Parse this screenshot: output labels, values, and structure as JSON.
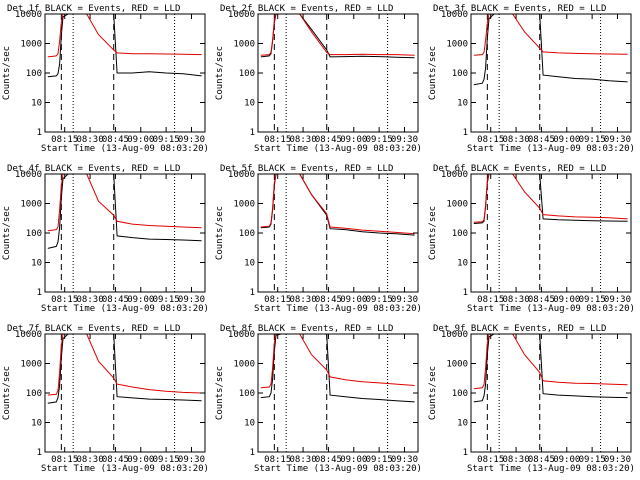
{
  "shared": {
    "ylabel": "Counts/sec",
    "xlabel": "Start Time (13-Aug-09 08:03:20)",
    "y_ticks": [
      "10000",
      "1000",
      "100",
      "10",
      "1"
    ],
    "x_ticks": [
      "08:15",
      "08:30",
      "08:45",
      "09:00",
      "09:15",
      "09:30"
    ]
  },
  "colors": {
    "events": "#000000",
    "lld": "#e00000",
    "axes": "#000000",
    "background": "#ffffff"
  },
  "chart_data": [
    {
      "type": "line",
      "title": "Det_1f BLACK = Events, RED = LLD",
      "xlim": [
        "08:03:20",
        "09:38"
      ],
      "ylim": [
        1,
        10000
      ],
      "yscale": "log",
      "x": [
        "08:05",
        "08:10",
        "08:11",
        "08:12",
        "08:13",
        "08:14",
        "08:17",
        "08:22",
        "08:28",
        "08:35",
        "08:44",
        "08:46",
        "08:55",
        "09:05",
        "09:15",
        "09:25",
        "09:36"
      ],
      "series": [
        {
          "name": "Events",
          "values": [
            75,
            80,
            95,
            200,
            1800,
            8000,
            10000,
            10000,
            10000,
            10000,
            10000,
            100,
            100,
            110,
            100,
            95,
            80
          ]
        },
        {
          "name": "LLD",
          "values": [
            350,
            380,
            450,
            1200,
            5000,
            10000,
            10000,
            10000,
            10000,
            2000,
            600,
            480,
            450,
            450,
            440,
            430,
            420
          ]
        }
      ],
      "markers": {
        "dashed": [
          "08:13",
          "08:44"
        ],
        "dotted": [
          "08:20",
          "09:20"
        ]
      }
    },
    {
      "type": "line",
      "title": "Det_2f BLACK = Events, RED = LLD",
      "xlim": [
        "08:03:20",
        "09:38"
      ],
      "ylim": [
        1,
        10000
      ],
      "yscale": "log",
      "x": [
        "08:05",
        "08:10",
        "08:11",
        "08:12",
        "08:13",
        "08:14",
        "08:17",
        "08:22",
        "08:28",
        "08:35",
        "08:44",
        "08:46",
        "08:55",
        "09:05",
        "09:15",
        "09:25",
        "09:36"
      ],
      "series": [
        {
          "name": "Events",
          "values": [
            350,
            380,
            450,
            1200,
            5000,
            10000,
            10000,
            10000,
            10000,
            3000,
            600,
            350,
            360,
            370,
            360,
            340,
            330
          ]
        },
        {
          "name": "LLD",
          "values": [
            400,
            420,
            500,
            1300,
            6000,
            10000,
            10000,
            10000,
            10000,
            2500,
            500,
            420,
            420,
            430,
            420,
            420,
            400
          ]
        }
      ],
      "markers": {
        "dashed": [
          "08:13",
          "08:44"
        ],
        "dotted": [
          "08:20",
          "09:20"
        ]
      }
    },
    {
      "type": "line",
      "title": "Det_3f BLACK = Events, RED = LLD",
      "xlim": [
        "08:03:20",
        "09:38"
      ],
      "ylim": [
        1,
        10000
      ],
      "yscale": "log",
      "x": [
        "08:05",
        "08:10",
        "08:11",
        "08:12",
        "08:13",
        "08:14",
        "08:17",
        "08:22",
        "08:28",
        "08:35",
        "08:44",
        "08:46",
        "08:55",
        "09:05",
        "09:15",
        "09:25",
        "09:36"
      ],
      "series": [
        {
          "name": "Events",
          "values": [
            40,
            45,
            60,
            150,
            1500,
            7000,
            10000,
            10000,
            10000,
            10000,
            10000,
            85,
            75,
            65,
            62,
            55,
            50
          ]
        },
        {
          "name": "LLD",
          "values": [
            400,
            420,
            500,
            1300,
            5000,
            10000,
            10000,
            10000,
            10000,
            2500,
            700,
            520,
            480,
            460,
            450,
            440,
            430
          ]
        }
      ],
      "markers": {
        "dashed": [
          "08:13",
          "08:44"
        ],
        "dotted": [
          "08:20",
          "09:20"
        ]
      }
    },
    {
      "type": "line",
      "title": "Det_4f BLACK = Events, RED = LLD",
      "xlim": [
        "08:03:20",
        "09:38"
      ],
      "ylim": [
        1,
        10000
      ],
      "yscale": "log",
      "x": [
        "08:05",
        "08:10",
        "08:11",
        "08:12",
        "08:13",
        "08:14",
        "08:17",
        "08:22",
        "08:28",
        "08:35",
        "08:44",
        "08:46",
        "08:55",
        "09:05",
        "09:15",
        "09:25",
        "09:36"
      ],
      "series": [
        {
          "name": "Events",
          "values": [
            30,
            35,
            50,
            150,
            1500,
            7000,
            10000,
            10000,
            10000,
            10000,
            10000,
            80,
            70,
            62,
            60,
            58,
            55
          ]
        },
        {
          "name": "LLD",
          "values": [
            120,
            130,
            160,
            600,
            4000,
            10000,
            10000,
            10000,
            10000,
            1200,
            400,
            250,
            200,
            180,
            170,
            160,
            150
          ]
        }
      ],
      "markers": {
        "dashed": [
          "08:13",
          "08:44"
        ],
        "dotted": [
          "08:20",
          "09:20"
        ]
      }
    },
    {
      "type": "line",
      "title": "Det_5f BLACK = Events, RED = LLD",
      "xlim": [
        "08:03:20",
        "09:38"
      ],
      "ylim": [
        1,
        10000
      ],
      "yscale": "log",
      "x": [
        "08:05",
        "08:10",
        "08:11",
        "08:12",
        "08:13",
        "08:14",
        "08:17",
        "08:22",
        "08:28",
        "08:35",
        "08:44",
        "08:46",
        "08:55",
        "09:05",
        "09:15",
        "09:25",
        "09:36"
      ],
      "series": [
        {
          "name": "Events",
          "values": [
            150,
            160,
            200,
            600,
            4000,
            10000,
            10000,
            10000,
            10000,
            2000,
            400,
            140,
            130,
            110,
            100,
            95,
            85
          ]
        },
        {
          "name": "LLD",
          "values": [
            160,
            170,
            220,
            700,
            5000,
            10000,
            10000,
            10000,
            10000,
            2000,
            450,
            160,
            145,
            125,
            115,
            105,
            95
          ]
        }
      ],
      "markers": {
        "dashed": [
          "08:13",
          "08:44"
        ],
        "dotted": [
          "08:20",
          "09:20"
        ]
      }
    },
    {
      "type": "line",
      "title": "Det_6f BLACK = Events, RED = LLD",
      "xlim": [
        "08:03:20",
        "09:38"
      ],
      "ylim": [
        1,
        10000
      ],
      "yscale": "log",
      "x": [
        "08:05",
        "08:10",
        "08:11",
        "08:12",
        "08:13",
        "08:14",
        "08:17",
        "08:22",
        "08:28",
        "08:35",
        "08:44",
        "08:46",
        "08:55",
        "09:05",
        "09:15",
        "09:25",
        "09:36"
      ],
      "series": [
        {
          "name": "Events",
          "values": [
            210,
            220,
            250,
            800,
            5000,
            10000,
            10000,
            10000,
            10000,
            10000,
            10000,
            300,
            280,
            270,
            260,
            255,
            250
          ]
        },
        {
          "name": "LLD",
          "values": [
            230,
            240,
            280,
            900,
            6000,
            10000,
            10000,
            10000,
            10000,
            2500,
            700,
            420,
            380,
            350,
            340,
            330,
            300
          ]
        }
      ],
      "markers": {
        "dashed": [
          "08:13",
          "08:44"
        ],
        "dotted": [
          "08:20",
          "09:20"
        ]
      }
    },
    {
      "type": "line",
      "title": "Det_7f BLACK = Events, RED = LLD",
      "xlim": [
        "08:03:20",
        "09:38"
      ],
      "ylim": [
        1,
        10000
      ],
      "yscale": "log",
      "x": [
        "08:05",
        "08:10",
        "08:11",
        "08:12",
        "08:13",
        "08:14",
        "08:17",
        "08:22",
        "08:28",
        "08:35",
        "08:44",
        "08:46",
        "08:55",
        "09:05",
        "09:15",
        "09:25",
        "09:36"
      ],
      "series": [
        {
          "name": "Events",
          "values": [
            45,
            50,
            70,
            180,
            1500,
            7000,
            10000,
            10000,
            10000,
            10000,
            10000,
            75,
            68,
            62,
            60,
            58,
            55
          ]
        },
        {
          "name": "LLD",
          "values": [
            85,
            90,
            120,
            500,
            4000,
            10000,
            10000,
            10000,
            10000,
            1200,
            320,
            200,
            160,
            130,
            115,
            105,
            100
          ]
        }
      ],
      "markers": {
        "dashed": [
          "08:13",
          "08:44"
        ],
        "dotted": [
          "08:20",
          "09:20"
        ]
      }
    },
    {
      "type": "line",
      "title": "Det_8f BLACK = Events, RED = LLD",
      "xlim": [
        "08:03:20",
        "09:38"
      ],
      "ylim": [
        1,
        10000
      ],
      "yscale": "log",
      "x": [
        "08:05",
        "08:10",
        "08:11",
        "08:12",
        "08:13",
        "08:14",
        "08:17",
        "08:22",
        "08:28",
        "08:35",
        "08:44",
        "08:46",
        "08:55",
        "09:05",
        "09:15",
        "09:25",
        "09:36"
      ],
      "series": [
        {
          "name": "Events",
          "values": [
            70,
            75,
            100,
            300,
            2500,
            9000,
            10000,
            10000,
            10000,
            10000,
            10000,
            85,
            75,
            65,
            60,
            55,
            50
          ]
        },
        {
          "name": "LLD",
          "values": [
            150,
            160,
            200,
            700,
            5000,
            10000,
            10000,
            10000,
            10000,
            2000,
            600,
            350,
            280,
            240,
            220,
            200,
            180
          ]
        }
      ],
      "markers": {
        "dashed": [
          "08:13",
          "08:44"
        ],
        "dotted": [
          "08:20",
          "09:20"
        ]
      }
    },
    {
      "type": "line",
      "title": "Det_9f BLACK = Events, RED = LLD",
      "xlim": [
        "08:03:20",
        "09:38"
      ],
      "ylim": [
        1,
        10000
      ],
      "yscale": "log",
      "x": [
        "08:05",
        "08:10",
        "08:11",
        "08:12",
        "08:13",
        "08:14",
        "08:17",
        "08:22",
        "08:28",
        "08:35",
        "08:44",
        "08:46",
        "08:55",
        "09:05",
        "09:15",
        "09:25",
        "09:36"
      ],
      "series": [
        {
          "name": "Events",
          "values": [
            50,
            55,
            80,
            200,
            2000,
            8000,
            10000,
            10000,
            10000,
            10000,
            10000,
            95,
            85,
            80,
            75,
            72,
            70
          ]
        },
        {
          "name": "LLD",
          "values": [
            140,
            150,
            190,
            700,
            5000,
            10000,
            10000,
            10000,
            10000,
            2000,
            500,
            260,
            230,
            215,
            210,
            200,
            190
          ]
        }
      ],
      "markers": {
        "dashed": [
          "08:13",
          "08:44"
        ],
        "dotted": [
          "08:20",
          "09:20"
        ]
      }
    }
  ]
}
